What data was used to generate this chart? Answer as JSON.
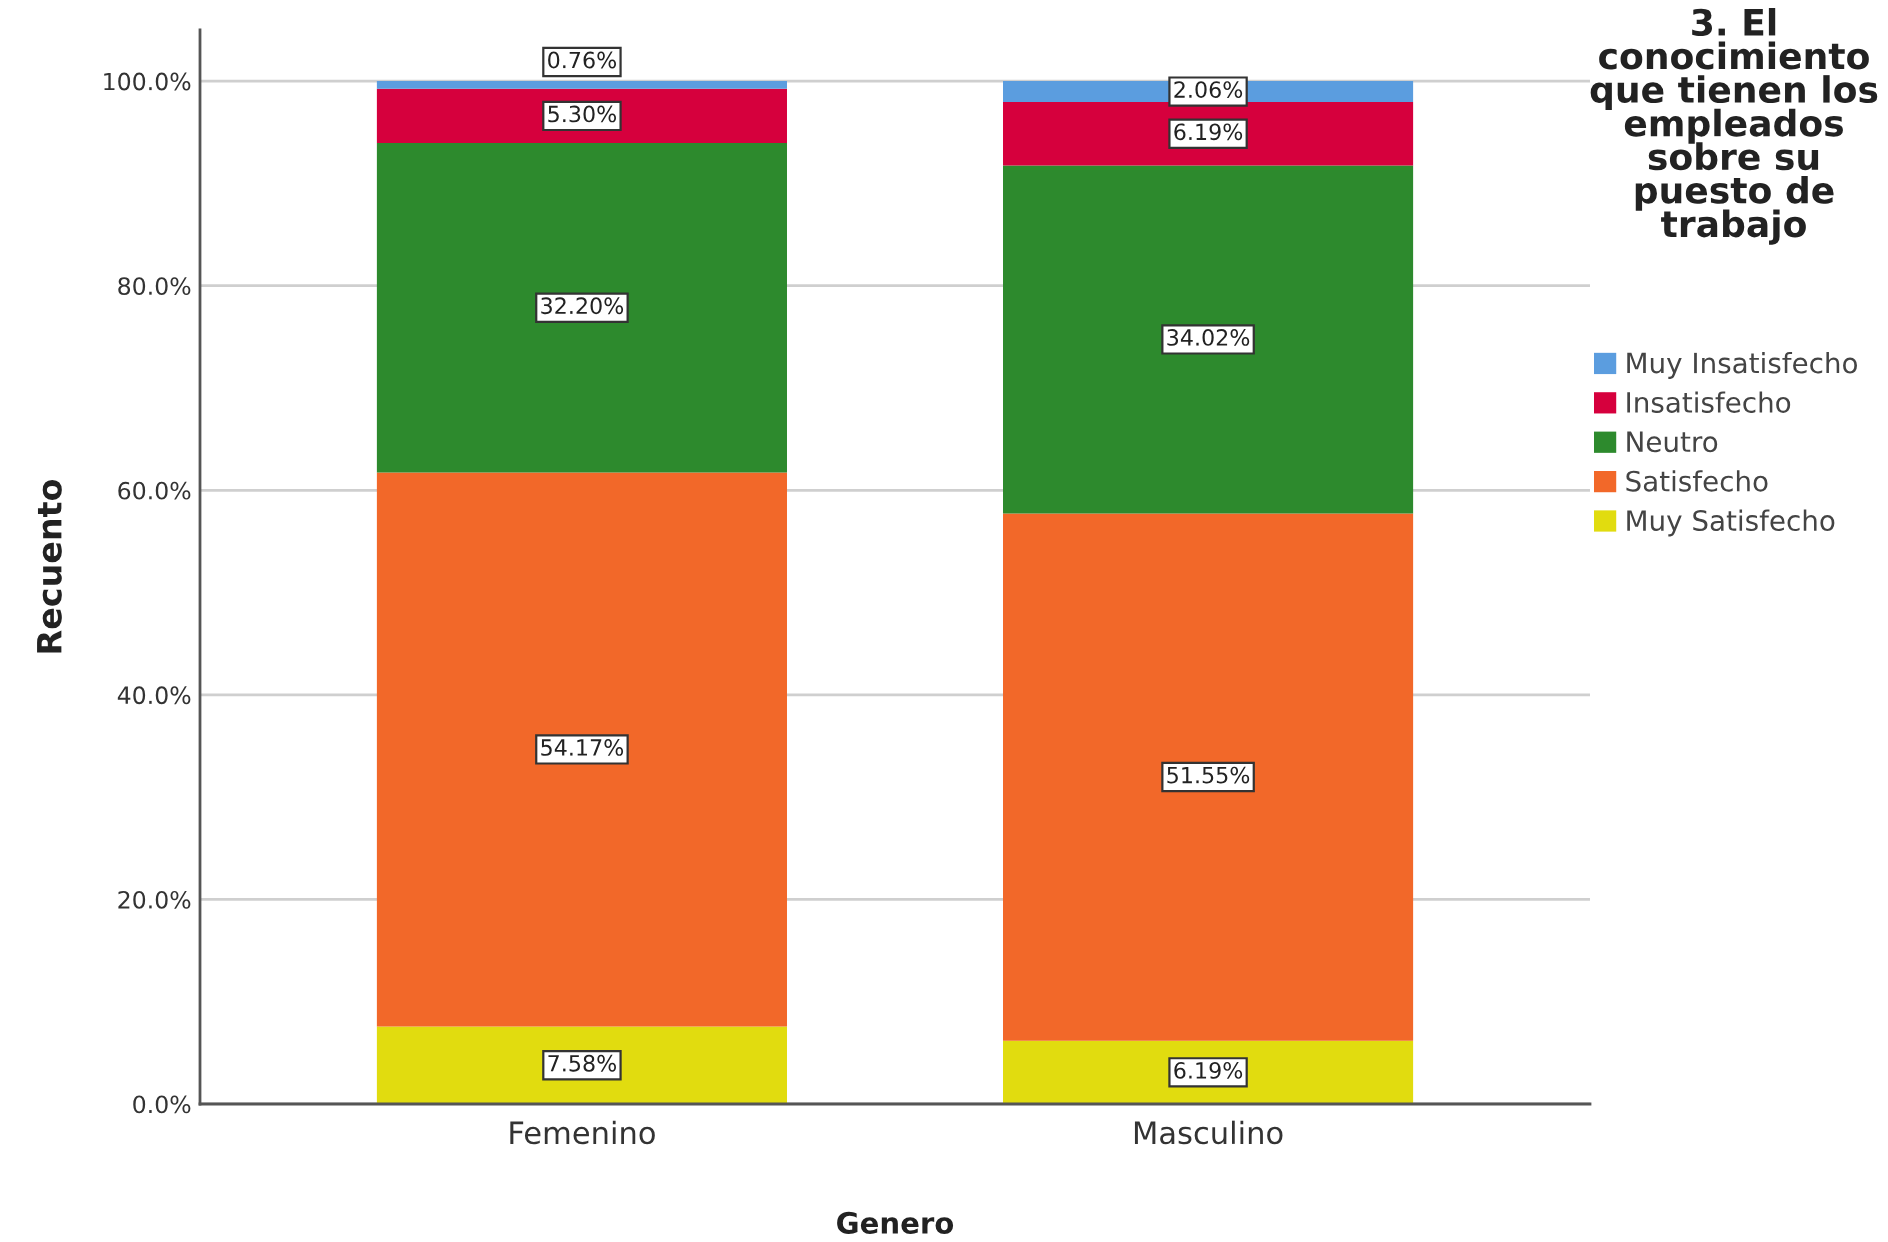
{
  "chart_data": {
    "type": "bar",
    "stacked": true,
    "xlabel": "Genero",
    "ylabel": "Recuento",
    "legend_title": "3. El conocimiento que tienen los empleados sobre su puesto de trabajo",
    "categories": [
      "Femenino",
      "Masculino"
    ],
    "series": [
      {
        "name": "Muy Satisfecho",
        "color": "#e1dc0f",
        "values": [
          7.58,
          6.19
        ],
        "value_labels": [
          "7.58%",
          "6.19%"
        ]
      },
      {
        "name": "Satisfecho",
        "color": "#f26829",
        "values": [
          54.17,
          51.55
        ],
        "value_labels": [
          "54.17%",
          "51.55%"
        ]
      },
      {
        "name": "Neutro",
        "color": "#2d8a2d",
        "values": [
          32.2,
          34.02
        ],
        "value_labels": [
          "32.20%",
          "34.02%"
        ]
      },
      {
        "name": "Insatisfecho",
        "color": "#d6003d",
        "values": [
          5.3,
          6.19
        ],
        "value_labels": [
          "5.30%",
          "6.19%"
        ]
      },
      {
        "name": "Muy Insatisfecho",
        "color": "#5b9ddf",
        "values": [
          0.76,
          2.06
        ],
        "value_labels": [
          "0.76%",
          "2.06%"
        ]
      }
    ],
    "ylim": [
      0,
      105
    ],
    "yticks": [
      {
        "value": 0,
        "label": "0.0%"
      },
      {
        "value": 20,
        "label": "20.0%"
      },
      {
        "value": 40,
        "label": "40.0%"
      },
      {
        "value": 60,
        "label": "60.0%"
      },
      {
        "value": 80,
        "label": "80.0%"
      },
      {
        "value": 100,
        "label": "100.0%"
      }
    ],
    "grid": "y",
    "legend": "right"
  }
}
